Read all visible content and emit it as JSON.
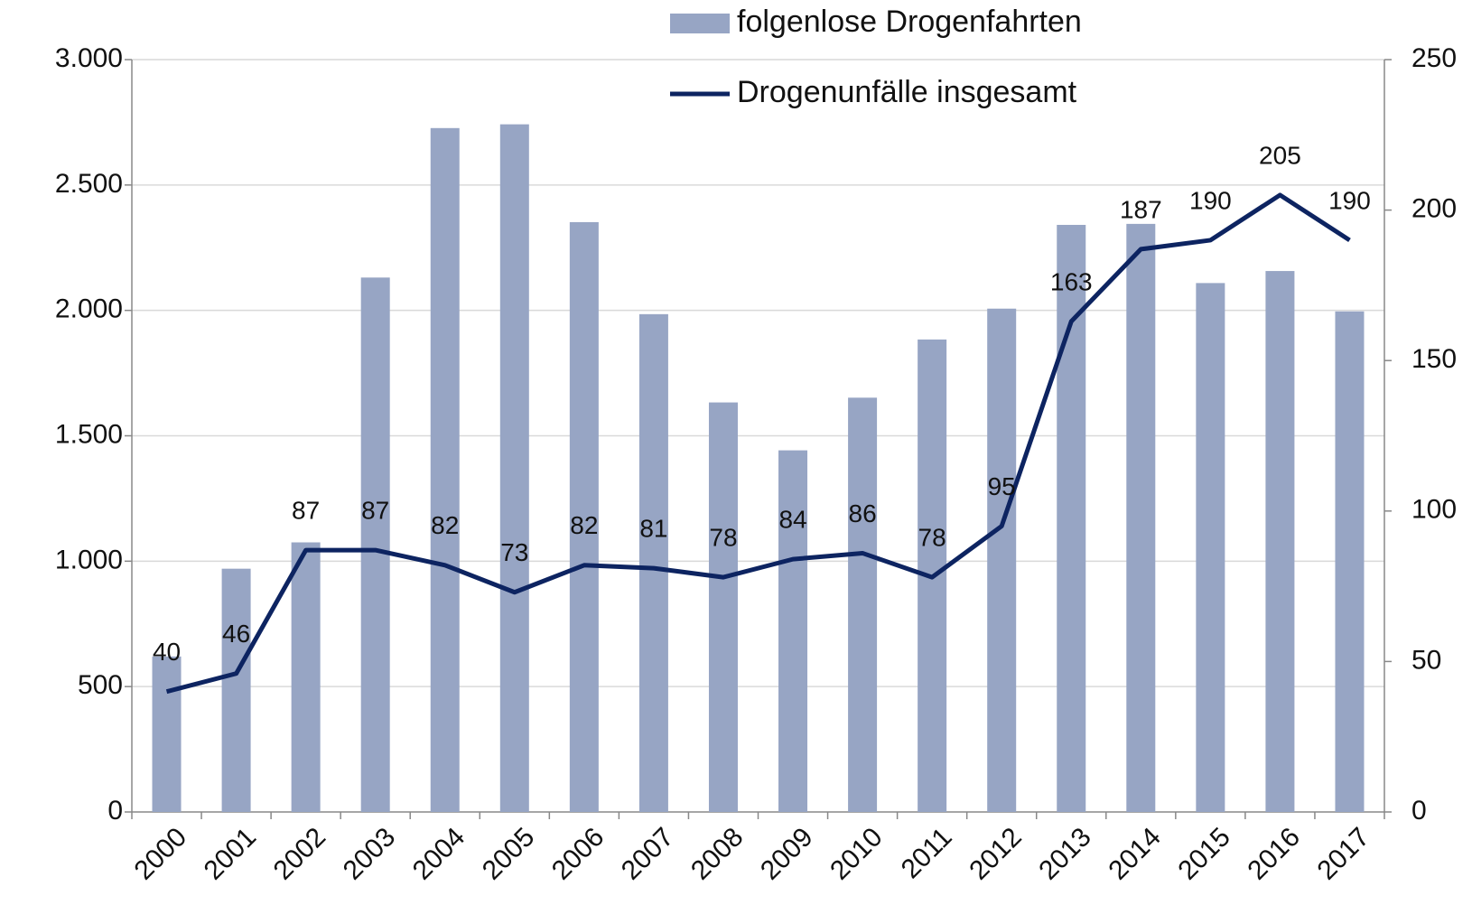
{
  "chart_data": {
    "type": "bar_line",
    "categories": [
      "2000",
      "2001",
      "2002",
      "2003",
      "2004",
      "2005",
      "2006",
      "2007",
      "2008",
      "2009",
      "2010",
      "2011",
      "2012",
      "2013",
      "2014",
      "2015",
      "2016",
      "2017"
    ],
    "series": [
      {
        "name": "folgenlose Drogenfahrten",
        "type": "bar",
        "color": "#97a5c4",
        "values": [
          620,
          970,
          1075,
          2131,
          2727,
          2742,
          2352,
          1985,
          1633,
          1442,
          1652,
          1884,
          2007,
          2341,
          2345,
          2109,
          2157,
          1996
        ]
      },
      {
        "name": "Drogenunfälle insgesamt",
        "type": "line",
        "axis": "y2",
        "color": "#0d2461",
        "values": [
          40,
          46,
          87,
          87,
          82,
          73,
          82,
          81,
          78,
          84,
          86,
          78,
          95,
          163,
          187,
          190,
          205,
          190
        ]
      }
    ],
    "ylim": [
      0,
      3000
    ],
    "yticks": [
      0,
      500,
      {
        "value": 1000,
        "label": "1.000"
      },
      {
        "value": 1500,
        "label": "1.500"
      },
      {
        "value": 2000,
        "label": "2.000"
      },
      {
        "value": 2500,
        "label": "2.500"
      },
      {
        "value": 3000,
        "label": "3.000"
      }
    ],
    "y2lim": [
      0,
      250
    ],
    "y2ticks": [
      0,
      50,
      100,
      150,
      200,
      250
    ],
    "grid": true
  }
}
